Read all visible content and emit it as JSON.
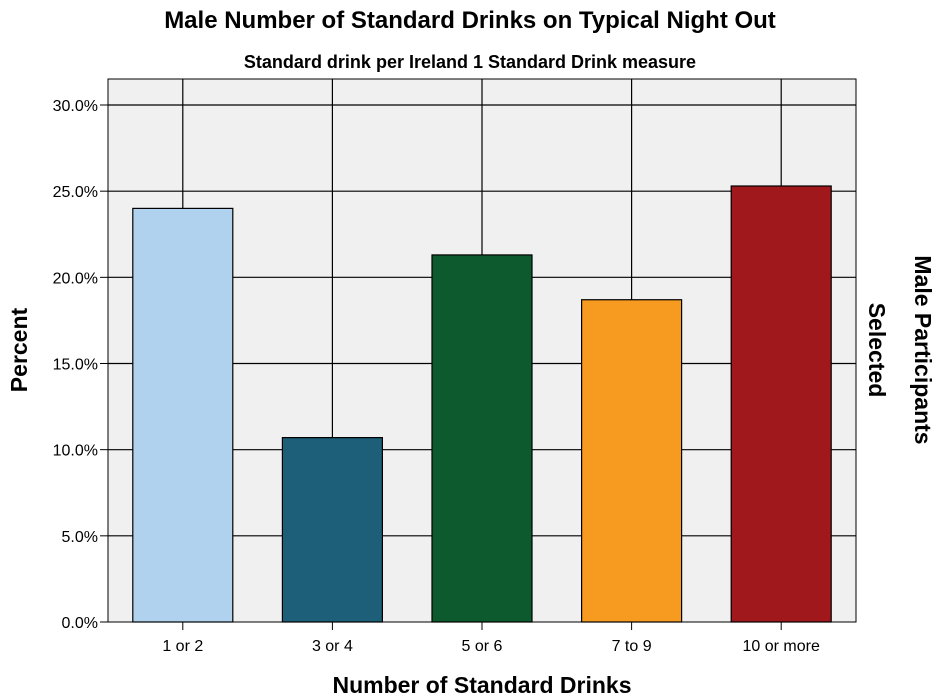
{
  "chart_data": {
    "type": "bar",
    "title": "Male Number of Standard Drinks on Typical Night Out",
    "subtitle": "Standard drink per Ireland 1 Standard Drink measure",
    "xlabel": "Number of Standard Drinks",
    "ylabel": "Percent",
    "panel_label": [
      "Male Participants",
      "Selected"
    ],
    "categories": [
      "1 or 2",
      "3 or 4",
      "5 or 6",
      "7 to 9",
      "10 or more"
    ],
    "values": [
      24.0,
      10.7,
      21.3,
      18.7,
      25.3
    ],
    "colors": [
      "#b0d2ee",
      "#1d5f78",
      "#0c5a2e",
      "#f79a20",
      "#a0171c"
    ],
    "ylim": [
      0,
      30
    ],
    "yticks": [
      0,
      5,
      10,
      15,
      20,
      25,
      30
    ],
    "ytick_labels": [
      "0.0%",
      "5.0%",
      "10.0%",
      "15.0%",
      "20.0%",
      "25.0%",
      "30.0%"
    ],
    "grid": true,
    "background": "#f0f0f0"
  }
}
